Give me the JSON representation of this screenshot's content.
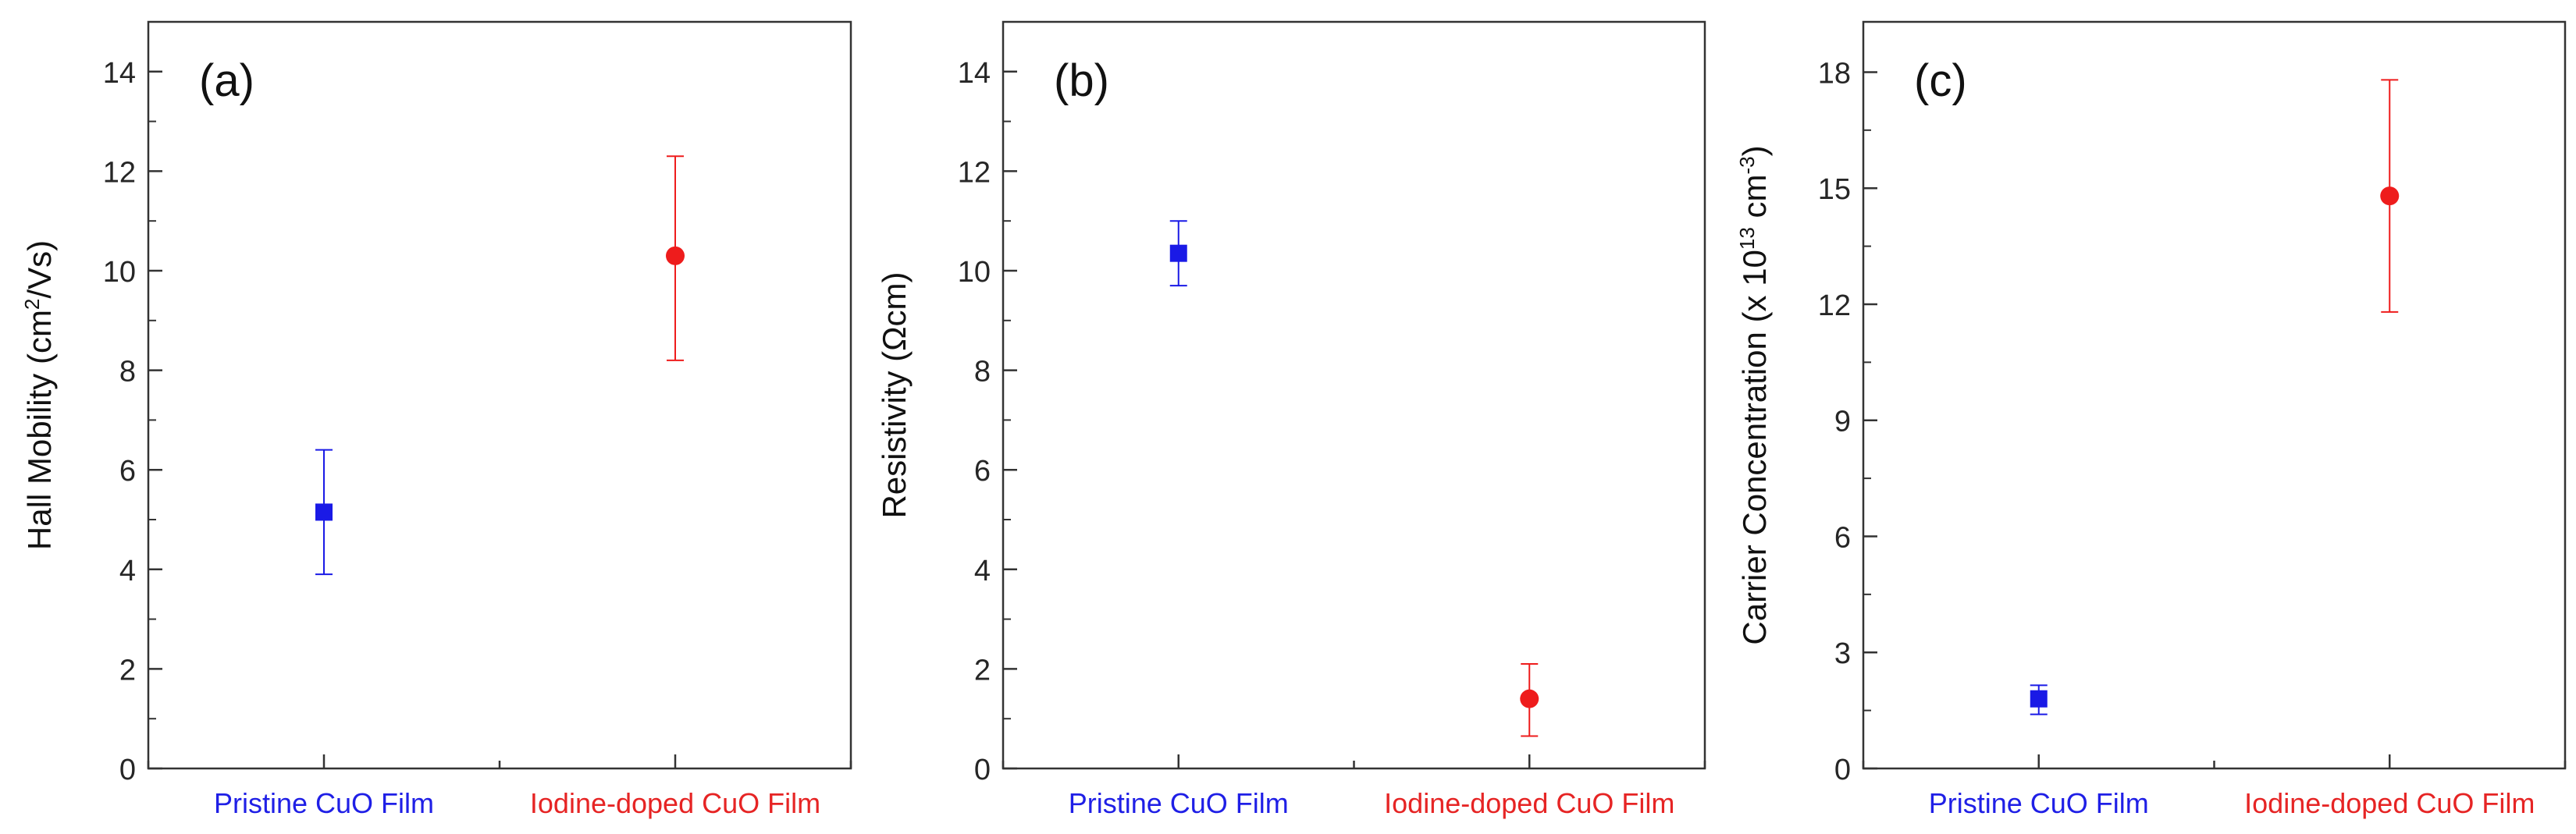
{
  "chart_data": [
    {
      "type": "scatter",
      "panel_label": "(a)",
      "ylabel_main": "Hall Mobility (cm",
      "ylabel_sup": "2",
      "ylabel_tail": "/Vs)",
      "ylim": [
        0,
        15
      ],
      "yticks": [
        0,
        2,
        4,
        6,
        8,
        10,
        12,
        14
      ],
      "categories": [
        "Pristine CuO Film",
        "Iodine-doped CuO Film"
      ],
      "category_colors": [
        "#1f1fe6",
        "#e62424"
      ],
      "points": [
        {
          "category": "Pristine CuO Film",
          "value": 5.15,
          "err_low": 3.9,
          "err_high": 6.4,
          "marker": "square",
          "color": "#1a1ae6"
        },
        {
          "category": "Iodine-doped CuO Film",
          "value": 10.3,
          "err_low": 8.2,
          "err_high": 12.3,
          "marker": "circle",
          "color": "#ee1c1c"
        }
      ]
    },
    {
      "type": "scatter",
      "panel_label": "(b)",
      "ylabel_main": "Resistivity (Ωcm)",
      "ylabel_sup": "",
      "ylabel_tail": "",
      "ylim": [
        0,
        15
      ],
      "yticks": [
        0,
        2,
        4,
        6,
        8,
        10,
        12,
        14
      ],
      "categories": [
        "Pristine CuO Film",
        "Iodine-doped CuO Film"
      ],
      "category_colors": [
        "#1f1fe6",
        "#e62424"
      ],
      "points": [
        {
          "category": "Pristine CuO Film",
          "value": 10.35,
          "err_low": 9.7,
          "err_high": 11.0,
          "marker": "square",
          "color": "#1a1ae6"
        },
        {
          "category": "Iodine-doped CuO Film",
          "value": 1.4,
          "err_low": 0.65,
          "err_high": 2.1,
          "marker": "circle",
          "color": "#ee1c1c"
        }
      ]
    },
    {
      "type": "scatter",
      "panel_label": "(c)",
      "ylabel_main": "Carrier Concentration (x 10",
      "ylabel_sup": "13",
      "ylabel_tail": " cm",
      "ylabel_sup2": "-3",
      "ylabel_end": ")",
      "ylim": [
        0,
        19.3
      ],
      "yticks": [
        0,
        3,
        6,
        9,
        12,
        15,
        18
      ],
      "categories": [
        "Pristine CuO Film",
        "Iodine-doped CuO Film"
      ],
      "category_colors": [
        "#1f1fe6",
        "#e62424"
      ],
      "points": [
        {
          "category": "Pristine CuO Film",
          "value": 1.8,
          "err_low": 1.4,
          "err_high": 2.15,
          "marker": "square",
          "color": "#1a1ae6"
        },
        {
          "category": "Iodine-doped CuO Film",
          "value": 14.8,
          "err_low": 11.8,
          "err_high": 17.8,
          "marker": "circle",
          "color": "#ee1c1c"
        }
      ]
    }
  ]
}
